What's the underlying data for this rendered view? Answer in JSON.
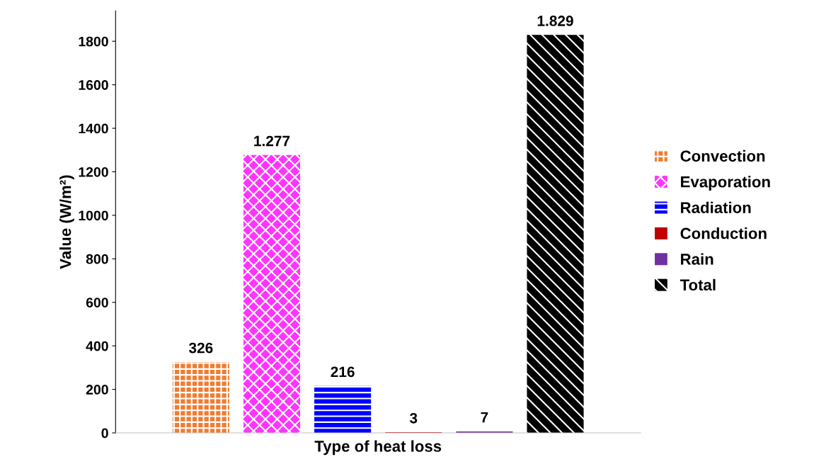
{
  "chart_data": {
    "type": "bar",
    "categories": [
      null
    ],
    "xlabel": "Type of heat loss",
    "ylabel": "Value (W/m²)",
    "ylim": [
      0,
      1940
    ],
    "yticks": [
      0,
      200,
      400,
      600,
      800,
      1000,
      1200,
      1400,
      1600,
      1800
    ],
    "legend": "right",
    "grid": false,
    "series": [
      {
        "name": "Convection",
        "color": "#ed7d31",
        "values": [
          326
        ],
        "value_labels": [
          "326"
        ]
      },
      {
        "name": "Evaporation",
        "color": "#ff33ff",
        "values": [
          1277
        ],
        "value_labels": [
          "1.277"
        ]
      },
      {
        "name": "Radiation",
        "color": "#0000ff",
        "values": [
          216
        ],
        "value_labels": [
          "216"
        ]
      },
      {
        "name": "Conduction",
        "color": "#c00000",
        "values": [
          3
        ],
        "value_labels": [
          "3"
        ]
      },
      {
        "name": "Rain",
        "color": "#7030a0",
        "values": [
          7
        ],
        "value_labels": [
          "7"
        ]
      },
      {
        "name": "Total",
        "color": "#000000",
        "values": [
          1829
        ],
        "value_labels": [
          "1.829"
        ]
      }
    ]
  }
}
